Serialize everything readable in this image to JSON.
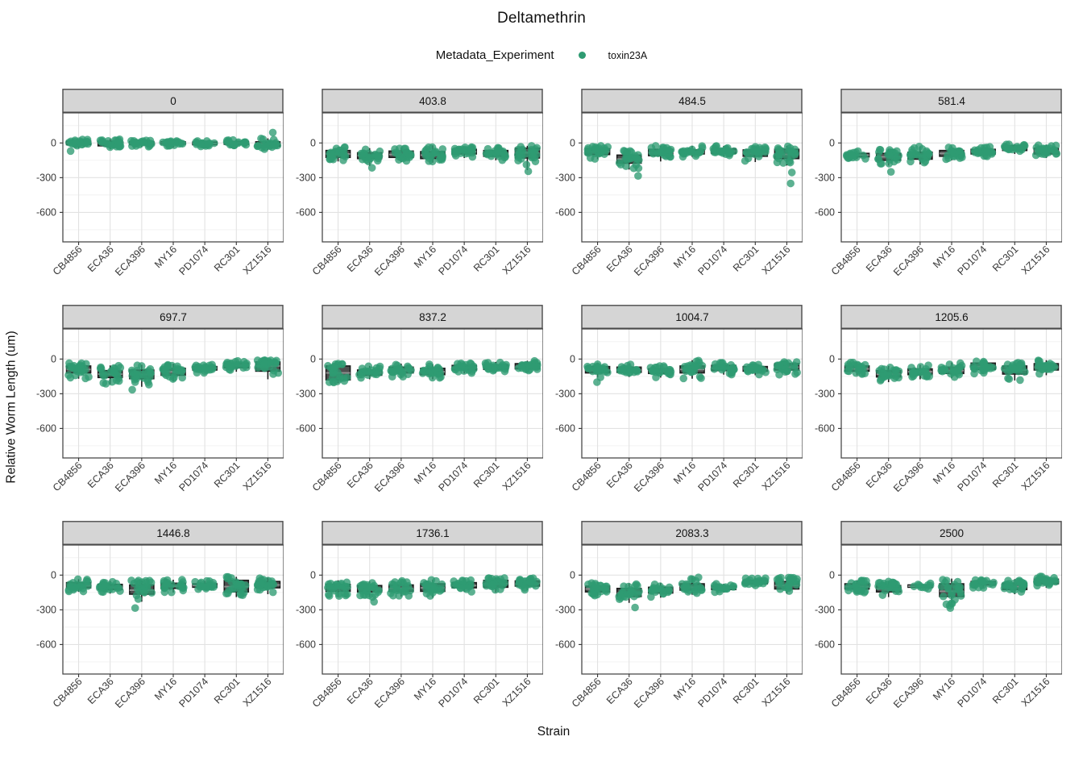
{
  "chart": {
    "title": "Deltamethrin",
    "x_label": "Strain",
    "y_label": "Relative Worm Length (um)",
    "legend": {
      "title": "Metadata_Experiment",
      "items": [
        {
          "label": "toxin23A",
          "color": "#2E9B72"
        }
      ]
    },
    "colors": {
      "point": "#2E9B72",
      "box_fill": "#4F4F4F",
      "box_stroke": "#1B1B1B",
      "median": "#8F8F8F",
      "strip_bg": "#D5D5D5",
      "strip_border": "#4A4A4A",
      "panel_border": "#4A4A4A",
      "grid_major": "#E2E2E2",
      "grid_minor": "#F1F1F1",
      "tick_text": "#383838"
    }
  },
  "chart_data": {
    "type": "boxplot-jitter-faceted",
    "facet_variable": "dose",
    "categories": [
      "CB4856",
      "ECA36",
      "ECA396",
      "MY16",
      "PD1074",
      "RC301",
      "XZ1516"
    ],
    "y_ticks": [
      0,
      -300,
      -600
    ],
    "y_minor_ticks": [
      150,
      -150,
      -450,
      -750
    ],
    "ylim": [
      -855,
      260
    ],
    "grid": "on",
    "legend_position": "top",
    "box_format": [
      "median",
      "q1",
      "q3",
      "whisker_lo",
      "whisker_hi",
      "n_points",
      "outliers"
    ],
    "facets": [
      {
        "label": "0",
        "strains": [
          [
            0,
            -15,
            15,
            -45,
            30,
            22,
            [
              -70
            ]
          ],
          [
            -5,
            -25,
            15,
            -55,
            35,
            24,
            []
          ],
          [
            0,
            -15,
            12,
            -35,
            30,
            22,
            []
          ],
          [
            0,
            -10,
            10,
            -40,
            25,
            20,
            []
          ],
          [
            -5,
            -15,
            8,
            -30,
            20,
            20,
            []
          ],
          [
            0,
            -12,
            12,
            -30,
            30,
            20,
            []
          ],
          [
            -10,
            -30,
            10,
            -60,
            40,
            22,
            [
              90
            ]
          ]
        ]
      },
      {
        "label": "403.8",
        "strains": [
          [
            -95,
            -125,
            -65,
            -160,
            -35,
            24,
            []
          ],
          [
            -110,
            -135,
            -85,
            -200,
            -45,
            22,
            [
              -215
            ]
          ],
          [
            -100,
            -125,
            -70,
            -165,
            -40,
            22,
            []
          ],
          [
            -105,
            -135,
            -75,
            -170,
            -20,
            24,
            []
          ],
          [
            -75,
            -95,
            -55,
            -130,
            -35,
            22,
            []
          ],
          [
            -90,
            -115,
            -65,
            -150,
            -40,
            22,
            []
          ],
          [
            -85,
            -130,
            -45,
            -235,
            -25,
            24,
            [
              -245
            ]
          ]
        ]
      },
      {
        "label": "484.5",
        "strains": [
          [
            -75,
            -100,
            -50,
            -140,
            -20,
            24,
            []
          ],
          [
            -140,
            -175,
            -105,
            -230,
            -60,
            24,
            [
              -285
            ]
          ],
          [
            -85,
            -110,
            -55,
            -160,
            -25,
            24,
            []
          ],
          [
            -80,
            -95,
            -60,
            -120,
            -25,
            20,
            []
          ],
          [
            -70,
            -90,
            -50,
            -120,
            -25,
            22,
            []
          ],
          [
            -90,
            -115,
            -60,
            -165,
            -30,
            22,
            []
          ],
          [
            -100,
            -135,
            -55,
            -195,
            -25,
            24,
            [
              -255,
              -350
            ]
          ]
        ]
      },
      {
        "label": "581.4",
        "strains": [
          [
            -105,
            -120,
            -90,
            -140,
            -70,
            18,
            []
          ],
          [
            -120,
            -150,
            -90,
            -195,
            -50,
            22,
            [
              -250
            ]
          ],
          [
            -110,
            -140,
            -80,
            -185,
            -30,
            24,
            []
          ],
          [
            -90,
            -115,
            -65,
            -150,
            -30,
            22,
            []
          ],
          [
            -75,
            -95,
            -55,
            -120,
            -30,
            22,
            []
          ],
          [
            -45,
            -65,
            -25,
            -95,
            -10,
            20,
            []
          ],
          [
            -70,
            -95,
            -45,
            -130,
            -15,
            22,
            []
          ]
        ]
      },
      {
        "label": "697.7",
        "strains": [
          [
            -90,
            -120,
            -60,
            -170,
            -30,
            24,
            []
          ],
          [
            -130,
            -160,
            -100,
            -220,
            -55,
            24,
            []
          ],
          [
            -135,
            -170,
            -95,
            -240,
            -50,
            24,
            [
              -265
            ]
          ],
          [
            -110,
            -140,
            -80,
            -195,
            -40,
            24,
            []
          ],
          [
            -80,
            -95,
            -65,
            -120,
            -45,
            22,
            []
          ],
          [
            -55,
            -75,
            -35,
            -110,
            -15,
            20,
            []
          ],
          [
            -60,
            -105,
            -25,
            -175,
            -10,
            24,
            []
          ]
        ]
      },
      {
        "label": "837.2",
        "strains": [
          [
            -120,
            -180,
            -60,
            -210,
            -40,
            24,
            []
          ],
          [
            -120,
            -140,
            -95,
            -175,
            -60,
            20,
            []
          ],
          [
            -95,
            -120,
            -70,
            -160,
            -40,
            22,
            []
          ],
          [
            -110,
            -135,
            -80,
            -175,
            -45,
            24,
            []
          ],
          [
            -75,
            -95,
            -55,
            -125,
            -35,
            22,
            []
          ],
          [
            -70,
            -90,
            -50,
            -120,
            -25,
            22,
            []
          ],
          [
            -65,
            -85,
            -40,
            -120,
            -15,
            24,
            []
          ]
        ]
      },
      {
        "label": "1004.7",
        "strains": [
          [
            -95,
            -120,
            -65,
            -160,
            -35,
            22,
            [
              -200
            ]
          ],
          [
            -95,
            -115,
            -70,
            -155,
            -40,
            22,
            []
          ],
          [
            -105,
            -125,
            -85,
            -160,
            -55,
            22,
            []
          ],
          [
            -90,
            -120,
            -60,
            -170,
            -10,
            24,
            []
          ],
          [
            -80,
            -100,
            -55,
            -135,
            -30,
            24,
            []
          ],
          [
            -85,
            -105,
            -65,
            -140,
            -40,
            22,
            []
          ],
          [
            -70,
            -95,
            -40,
            -140,
            -10,
            24,
            []
          ]
        ]
      },
      {
        "label": "1205.6",
        "strains": [
          [
            -85,
            -105,
            -60,
            -140,
            -30,
            22,
            []
          ],
          [
            -130,
            -155,
            -100,
            -200,
            -60,
            22,
            []
          ],
          [
            -110,
            -135,
            -85,
            -175,
            -50,
            22,
            []
          ],
          [
            -100,
            -125,
            -70,
            -165,
            -30,
            22,
            []
          ],
          [
            -65,
            -90,
            -35,
            -130,
            -5,
            22,
            []
          ],
          [
            -95,
            -130,
            -60,
            -185,
            -25,
            22,
            []
          ],
          [
            -70,
            -95,
            -40,
            -140,
            -10,
            24,
            []
          ]
        ]
      },
      {
        "label": "1446.8",
        "strains": [
          [
            -90,
            -110,
            -65,
            -145,
            -35,
            22,
            []
          ],
          [
            -105,
            -125,
            -80,
            -160,
            -50,
            22,
            []
          ],
          [
            -130,
            -165,
            -85,
            -230,
            -45,
            24,
            [
              -285
            ]
          ],
          [
            -95,
            -115,
            -70,
            -150,
            -40,
            22,
            []
          ],
          [
            -90,
            -105,
            -75,
            -130,
            -50,
            22,
            []
          ],
          [
            -100,
            -145,
            -45,
            -190,
            -15,
            24,
            []
          ],
          [
            -85,
            -110,
            -55,
            -165,
            -20,
            24,
            []
          ]
        ]
      },
      {
        "label": "1736.1",
        "strains": [
          [
            -110,
            -140,
            -80,
            -185,
            -45,
            24,
            []
          ],
          [
            -120,
            -145,
            -90,
            -190,
            -55,
            24,
            [
              -230
            ]
          ],
          [
            -115,
            -140,
            -85,
            -185,
            -50,
            22,
            []
          ],
          [
            -110,
            -140,
            -75,
            -195,
            -40,
            24,
            []
          ],
          [
            -90,
            -110,
            -65,
            -145,
            -35,
            22,
            []
          ],
          [
            -75,
            -105,
            -45,
            -150,
            -20,
            22,
            []
          ],
          [
            -75,
            -95,
            -50,
            -130,
            -25,
            24,
            []
          ]
        ]
      },
      {
        "label": "2083.3",
        "strains": [
          [
            -120,
            -145,
            -95,
            -180,
            -60,
            22,
            []
          ],
          [
            -155,
            -185,
            -115,
            -240,
            -70,
            24,
            [
              -280
            ]
          ],
          [
            -130,
            -155,
            -105,
            -195,
            -65,
            20,
            []
          ],
          [
            -105,
            -130,
            -75,
            -170,
            -15,
            22,
            []
          ],
          [
            -110,
            -125,
            -95,
            -150,
            -75,
            18,
            []
          ],
          [
            -60,
            -75,
            -45,
            -100,
            -25,
            20,
            []
          ],
          [
            -90,
            -120,
            -55,
            -160,
            -20,
            24,
            []
          ]
        ]
      },
      {
        "label": "2500",
        "strains": [
          [
            -100,
            -120,
            -75,
            -155,
            -45,
            22,
            []
          ],
          [
            -120,
            -145,
            -90,
            -190,
            -55,
            24,
            []
          ],
          [
            -95,
            -105,
            -85,
            -120,
            -70,
            10,
            []
          ],
          [
            -140,
            -185,
            -75,
            -270,
            -30,
            22,
            [
              -285
            ]
          ],
          [
            -70,
            -85,
            -55,
            -110,
            -35,
            20,
            []
          ],
          [
            -100,
            -125,
            -70,
            -165,
            -35,
            22,
            []
          ],
          [
            -55,
            -75,
            -35,
            -110,
            -10,
            24,
            []
          ]
        ]
      }
    ]
  }
}
